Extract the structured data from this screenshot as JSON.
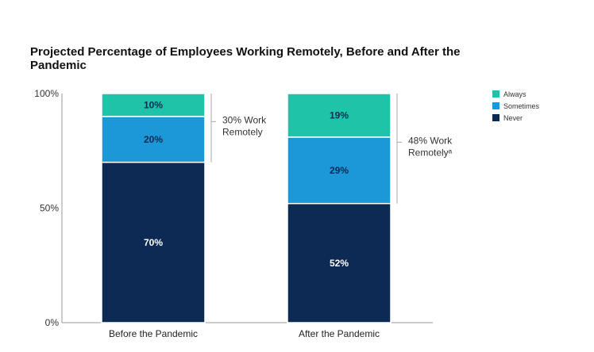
{
  "chart_data": {
    "type": "bar",
    "stacked": true,
    "title": "Projected Percentage of Employees Working Remotely, Before and After the Pandemic",
    "categories": [
      "Before the Pandemic",
      "After the Pandemic"
    ],
    "series": [
      {
        "name": "Never",
        "color": "#0d2a55",
        "label_color": "#ffffff",
        "values": [
          70,
          52
        ]
      },
      {
        "name": "Sometimes",
        "color": "#1c98d8",
        "label_color": "#0d2a55",
        "values": [
          20,
          29
        ]
      },
      {
        "name": "Always",
        "color": "#1fc4a8",
        "label_color": "#0d2a55",
        "values": [
          10,
          19
        ]
      }
    ],
    "y_ticks": [
      "0%",
      "50%",
      "100%"
    ],
    "ylim": [
      0,
      100
    ],
    "legend": {
      "position": "top-right",
      "items": [
        {
          "name": "Always",
          "color": "#1fc4a8"
        },
        {
          "name": "Sometimes",
          "color": "#1c98d8"
        },
        {
          "name": "Never",
          "color": "#0d2a55"
        }
      ]
    },
    "annotations": [
      {
        "category": "Before the Pandemic",
        "lines": [
          "30% Work",
          "Remotely"
        ]
      },
      {
        "category": "After the Pandemic",
        "lines": [
          "48% Work",
          "Remotelyᵃ"
        ]
      }
    ]
  }
}
